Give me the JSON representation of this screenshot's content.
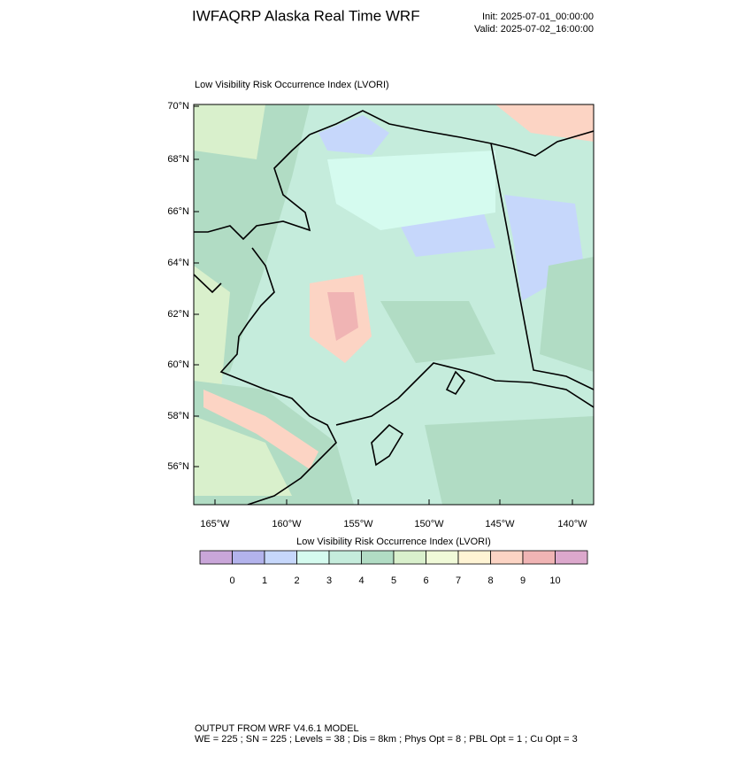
{
  "header": {
    "title": "IWFAQRP Alaska Real Time WRF",
    "init": "Init: 2025-07-01_00:00:00",
    "valid": "Valid: 2025-07-02_16:00:00"
  },
  "map": {
    "title": "Low Visibility Risk Occurrence Index   (LVORI)",
    "lat_labels": [
      "70°N",
      "68°N",
      "66°N",
      "64°N",
      "62°N",
      "60°N",
      "58°N",
      "56°N"
    ],
    "lon_labels": [
      "165°W",
      "160°W",
      "155°W",
      "150°W",
      "145°W",
      "140°W"
    ]
  },
  "colorbar": {
    "title": "Low Visibility Risk Occurrence Index  (LVORI)",
    "labels": [
      "0",
      "1",
      "2",
      "3",
      "4",
      "5",
      "6",
      "7",
      "8",
      "9",
      "10"
    ],
    "colors": [
      "#c9a6d9",
      "#b3b3ec",
      "#c6d7fb",
      "#d5fbef",
      "#c5ecdc",
      "#b1dcc4",
      "#d9f0cc",
      "#f0fad8",
      "#fff4d4",
      "#fcd4c4",
      "#f0b4b4",
      "#dca8cc"
    ]
  },
  "footer": {
    "line1": "OUTPUT FROM WRF V4.6.1 MODEL",
    "line2": "WE = 225 ; SN = 225 ; Levels = 38 ; Dis = 8km ; Phys Opt = 8 ; PBL Opt = 1 ; Cu Opt = 3"
  }
}
